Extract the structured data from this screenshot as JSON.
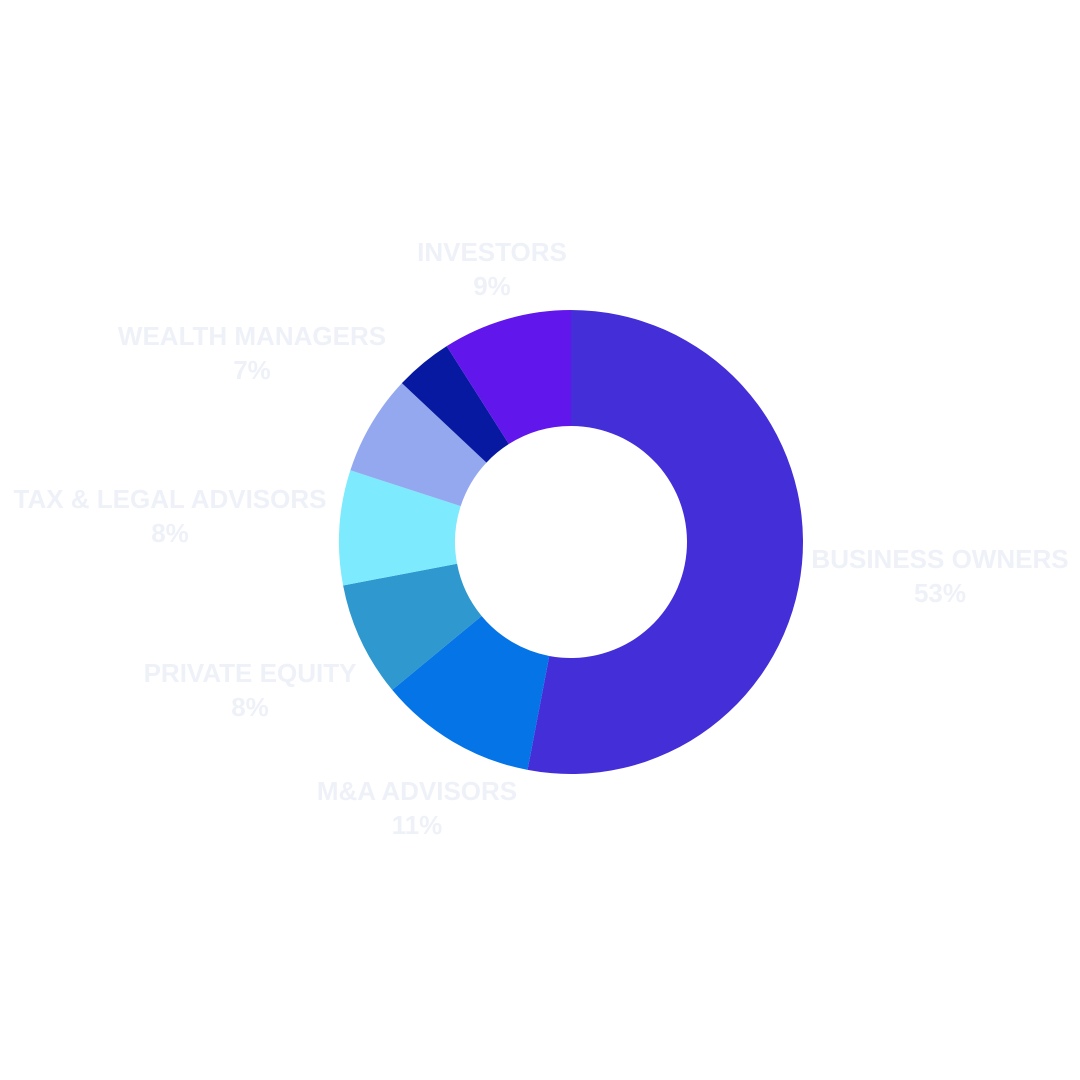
{
  "chart_data": {
    "type": "donut",
    "categories": [
      "BUSINESS OWNERS",
      "M&A ADVISORS",
      "PRIVATE EQUITY",
      "TAX & LEGAL ADVISORS",
      "WEALTH MANAGERS",
      null,
      "INVESTORS"
    ],
    "values": [
      53,
      11,
      8,
      8,
      7,
      4,
      9
    ],
    "value_labels": [
      "53%",
      "11%",
      "8%",
      "8%",
      "7%",
      null,
      "9%"
    ],
    "colors": [
      "#432ed8",
      "#0474e6",
      "#2e98cf",
      "#7deafe",
      "#94a8f0",
      "#0619a0",
      "#6117ec"
    ]
  }
}
